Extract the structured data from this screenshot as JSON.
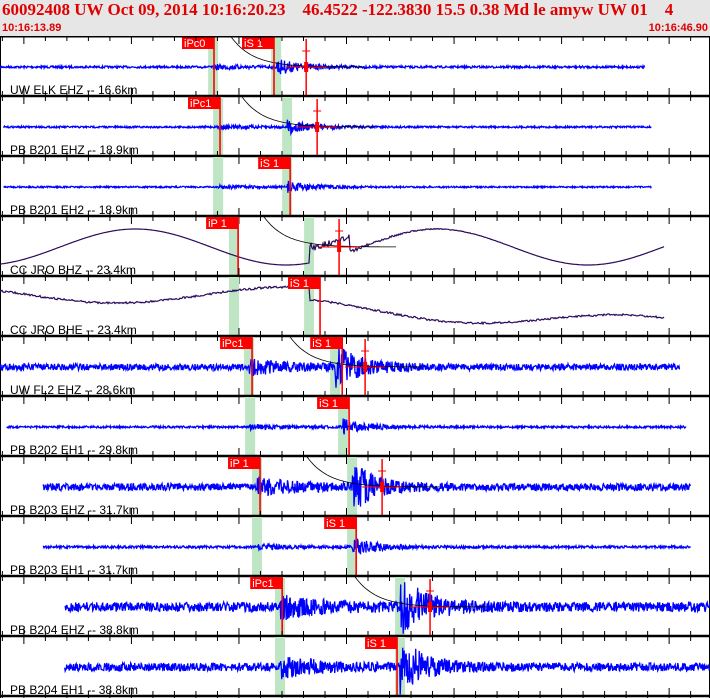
{
  "header": {
    "title": "60092408 UW Oct 09, 2014 10:16:20.23    46.4522 -122.3830 15.5 0.38 Md le amyw UW 01    4",
    "start_time": "10:16:13.89",
    "end_time": "10:16:46.90"
  },
  "colors": {
    "header_text": "#e00000",
    "header_bg": "#e6e6e6",
    "trace": "#0000ff",
    "broadband_trace": "#2a0a5a",
    "pick": "#ff0000",
    "window": "#bfe6c4",
    "residual": "#000000"
  },
  "traces": [
    {
      "label": "UW ELK EHZ -- 16.6km",
      "kind": "short",
      "start": "10:16:13.89",
      "end": "10:16:43.90",
      "picks": [
        {
          "name": "iPc0",
          "time": "10:16:23.84"
        },
        {
          "name": "iS 1",
          "time": "10:16:26.63"
        }
      ],
      "windows": [
        "10:16:23.80",
        "10:16:26.73"
      ],
      "amp": 0.35,
      "residual": true
    },
    {
      "label": "PB B201 EHZ -- 18.9km",
      "kind": "short",
      "start": "10:16:14.05",
      "end": "10:16:44.20",
      "picks": [
        {
          "name": "iPc1",
          "time": "10:16:24.12"
        }
      ],
      "windows": [
        "10:16:24.03",
        "10:16:27.24"
      ],
      "amp": 0.3,
      "residual": true
    },
    {
      "label": "PB B201 EH2 -- 18.9km",
      "kind": "short",
      "start": "10:16:14.05",
      "end": "10:16:44.20",
      "picks": [
        {
          "name": "iS 1",
          "time": "10:16:27.38"
        }
      ],
      "windows": [
        "10:16:24.03",
        "10:16:27.24"
      ],
      "amp": 0.25,
      "residual": false
    },
    {
      "label": "CC JRO BHZ -- 23.4km",
      "kind": "broad",
      "start": "10:16:13.89",
      "end": "10:16:44.80",
      "picks": [
        {
          "name": "iP 1",
          "time": "10:16:24.96"
        }
      ],
      "windows": [
        "10:16:24.77",
        "10:16:28.26"
      ],
      "amp": 1,
      "residual": true
    },
    {
      "label": "CC JRO BHE -- 23.4km",
      "kind": "broad2",
      "start": "10:16:13.89",
      "end": "10:16:44.80",
      "picks": [
        {
          "name": "iS 1",
          "time": "10:16:28.77"
        }
      ],
      "windows": [
        "10:16:24.77",
        "10:16:28.26"
      ],
      "amp": 1,
      "residual": false
    },
    {
      "label": "UW FL2 EHZ -- 28.6km",
      "kind": "short",
      "start": "10:16:13.89",
      "end": "10:16:45.50",
      "picks": [
        {
          "name": "iPc1",
          "time": "10:16:25.61"
        },
        {
          "name": "iS 1",
          "time": "10:16:29.80"
        }
      ],
      "windows": [
        "10:16:25.47",
        "10:16:29.47"
      ],
      "amp": 1.1,
      "residual": true
    },
    {
      "label": "PB B202 EH1 -- 29.8km",
      "kind": "short",
      "start": "10:16:14.20",
      "end": "10:16:45.80",
      "picks": [
        {
          "name": "iS 1",
          "time": "10:16:30.12"
        }
      ],
      "windows": [
        "10:16:25.52",
        "10:16:29.84"
      ],
      "amp": 0.35,
      "residual": false
    },
    {
      "label": "PB B203 EHZ -- 31.7km",
      "kind": "short",
      "start": "10:16:15.89",
      "end": "10:16:46.00",
      "picks": [
        {
          "name": "iP 1",
          "time": "10:16:25.98"
        }
      ],
      "windows": [
        "10:16:25.84",
        "10:16:30.26"
      ],
      "amp": 1.2,
      "residual": true
    },
    {
      "label": "PB B203 EH1 -- 31.7km",
      "kind": "short",
      "start": "10:16:15.89",
      "end": "10:16:46.00",
      "picks": [
        {
          "name": "iS 1",
          "time": "10:16:30.45"
        }
      ],
      "windows": [
        "10:16:25.84",
        "10:16:30.26"
      ],
      "amp": 0.4,
      "residual": false
    },
    {
      "label": "PB B204 EHZ -- 38.8km",
      "kind": "short",
      "start": "10:16:16.90",
      "end": "10:16:46.90",
      "picks": [
        {
          "name": "iPc1",
          "time": "10:16:27.01"
        }
      ],
      "windows": [
        "10:16:26.91",
        "10:16:32.49"
      ],
      "amp": 1.6,
      "residual": true
    },
    {
      "label": "PB B204 EH1 -- 38.8km",
      "kind": "short",
      "start": "10:16:16.90",
      "end": "10:16:46.90",
      "picks": [
        {
          "name": "iS 1",
          "time": "10:16:32.35"
        }
      ],
      "windows": [
        "10:16:26.91",
        "10:16:32.49"
      ],
      "amp": 1.4,
      "residual": false
    }
  ]
}
